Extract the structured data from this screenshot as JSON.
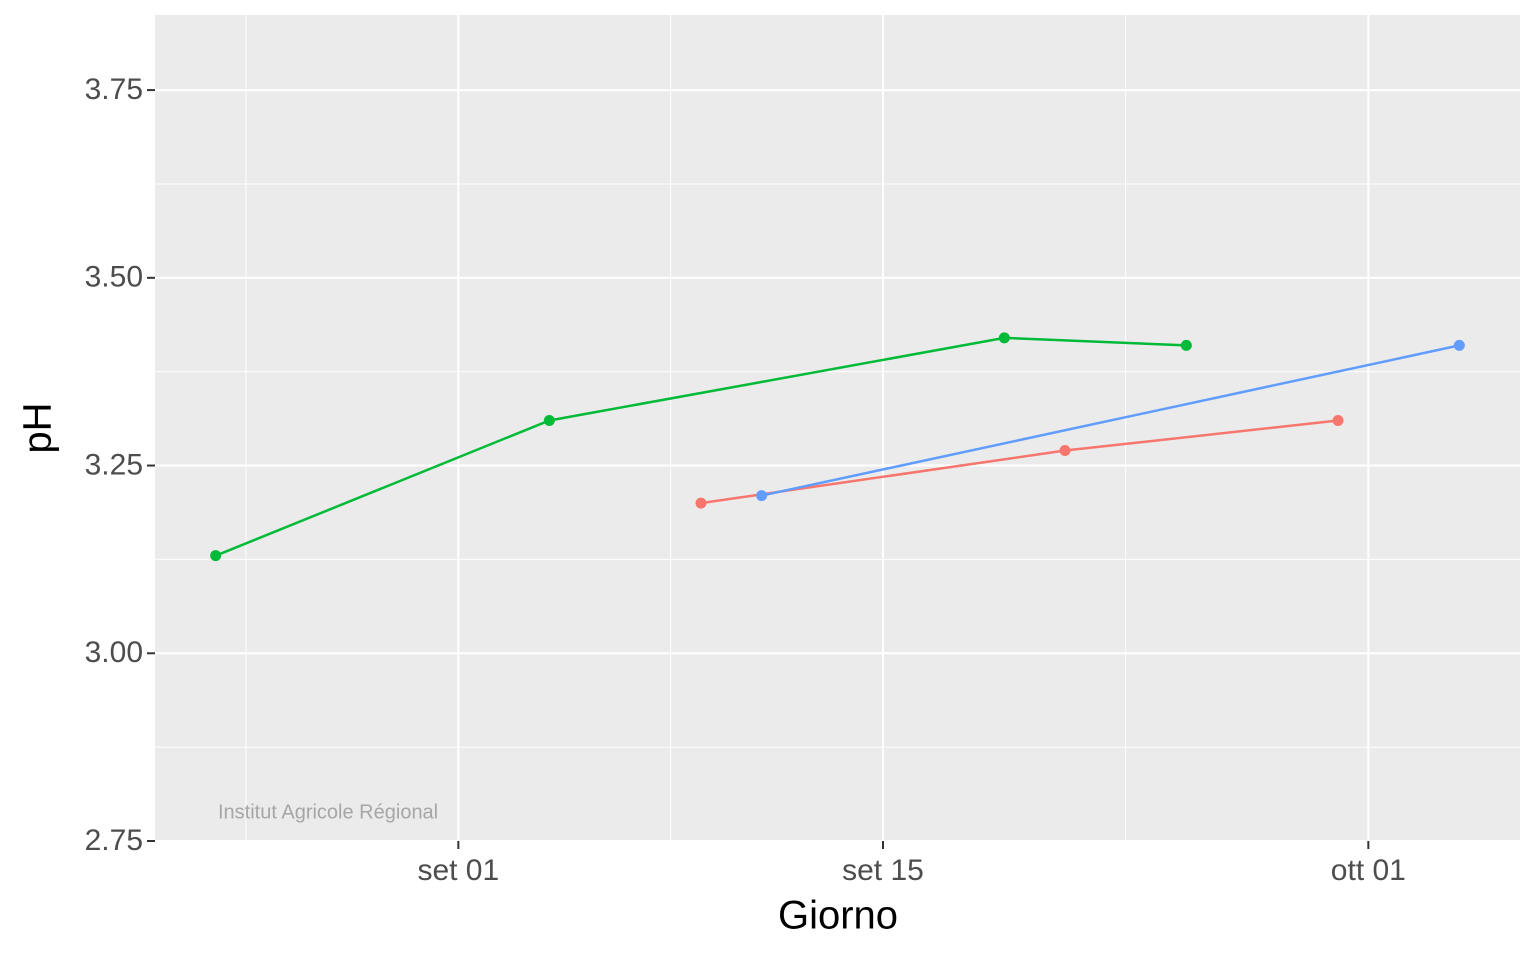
{
  "chart_data": {
    "type": "line",
    "x_label": "Giorno",
    "y_label": "pH",
    "annotation": "Institut Agricole Régional",
    "xlim": [
      "08-22",
      "10-06"
    ],
    "xticks": [
      {
        "value": "09-01",
        "label": "set 01"
      },
      {
        "value": "09-15",
        "label": "set 15"
      },
      {
        "value": "10-01",
        "label": "ott 01"
      }
    ],
    "ylim": [
      2.75,
      3.85
    ],
    "yticks": [
      {
        "value": 2.75,
        "label": "2.75"
      },
      {
        "value": 3,
        "label": "3.00"
      },
      {
        "value": 3.25,
        "label": "3.25"
      },
      {
        "value": 3.5,
        "label": "3.50"
      },
      {
        "value": 3.75,
        "label": "3.75"
      }
    ],
    "grid": true,
    "series": [
      {
        "color": "#F8766D",
        "x": [
          "09-09",
          "09-21",
          "09-30"
        ],
        "values": [
          3.2,
          3.27,
          3.31
        ]
      },
      {
        "color": "#00BA38",
        "x": [
          "08-24",
          "09-04",
          "09-19",
          "09-25"
        ],
        "values": [
          3.13,
          3.31,
          3.42,
          3.41
        ]
      },
      {
        "color": "#619CFF",
        "x": [
          "09-11",
          "10-04"
        ],
        "values": [
          3.21,
          3.41
        ]
      }
    ]
  }
}
